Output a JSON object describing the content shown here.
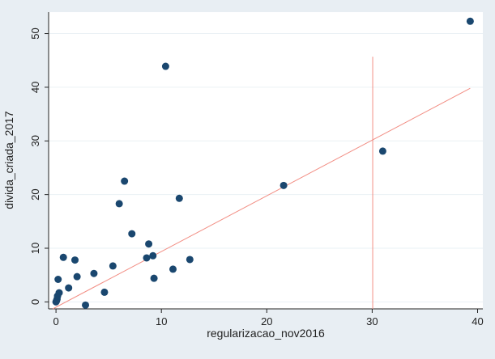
{
  "chart_data": {
    "type": "scatter",
    "xlabel": "regularizacao_nov2016",
    "ylabel": "divida_criada_2017",
    "xlim": [
      -0.7,
      40.5
    ],
    "ylim": [
      -1.3,
      54
    ],
    "x_ticks": [
      0,
      10,
      20,
      30,
      40
    ],
    "y_ticks": [
      0,
      10,
      20,
      30,
      40,
      50
    ],
    "grid": true,
    "colors": {
      "points": "#1a476f",
      "fit_line": "#f28e84",
      "reference_line": "#f28e84",
      "plot_background": "#ffffff",
      "outer_background": "#e8eef3",
      "grid": "#eaf0f4"
    },
    "points": [
      {
        "x": 0.0,
        "y": 0.0
      },
      {
        "x": 0.05,
        "y": 0.2
      },
      {
        "x": 0.1,
        "y": 0.5
      },
      {
        "x": 0.15,
        "y": 1.1
      },
      {
        "x": 0.3,
        "y": 1.7
      },
      {
        "x": 0.2,
        "y": 4.2
      },
      {
        "x": 0.7,
        "y": 8.3
      },
      {
        "x": 1.2,
        "y": 2.6
      },
      {
        "x": 1.8,
        "y": 7.8
      },
      {
        "x": 2.0,
        "y": 4.7
      },
      {
        "x": 2.8,
        "y": -0.6
      },
      {
        "x": 3.6,
        "y": 5.3
      },
      {
        "x": 4.6,
        "y": 1.8
      },
      {
        "x": 5.4,
        "y": 6.7
      },
      {
        "x": 6.0,
        "y": 18.3
      },
      {
        "x": 6.5,
        "y": 22.5
      },
      {
        "x": 7.2,
        "y": 12.7
      },
      {
        "x": 8.6,
        "y": 8.2
      },
      {
        "x": 8.8,
        "y": 10.8
      },
      {
        "x": 9.2,
        "y": 8.6
      },
      {
        "x": 9.3,
        "y": 4.4
      },
      {
        "x": 10.4,
        "y": 43.9
      },
      {
        "x": 11.1,
        "y": 6.1
      },
      {
        "x": 11.7,
        "y": 19.3
      },
      {
        "x": 12.7,
        "y": 7.9
      },
      {
        "x": 21.6,
        "y": 21.7
      },
      {
        "x": 31.0,
        "y": 28.1
      },
      {
        "x": 39.3,
        "y": 52.3
      }
    ],
    "fit_line": {
      "x": [
        -0.3,
        39.3
      ],
      "y": [
        -1.3,
        39.8
      ]
    },
    "reference_line": {
      "x": 30.05,
      "y": [
        -1.3,
        45.7
      ]
    }
  }
}
